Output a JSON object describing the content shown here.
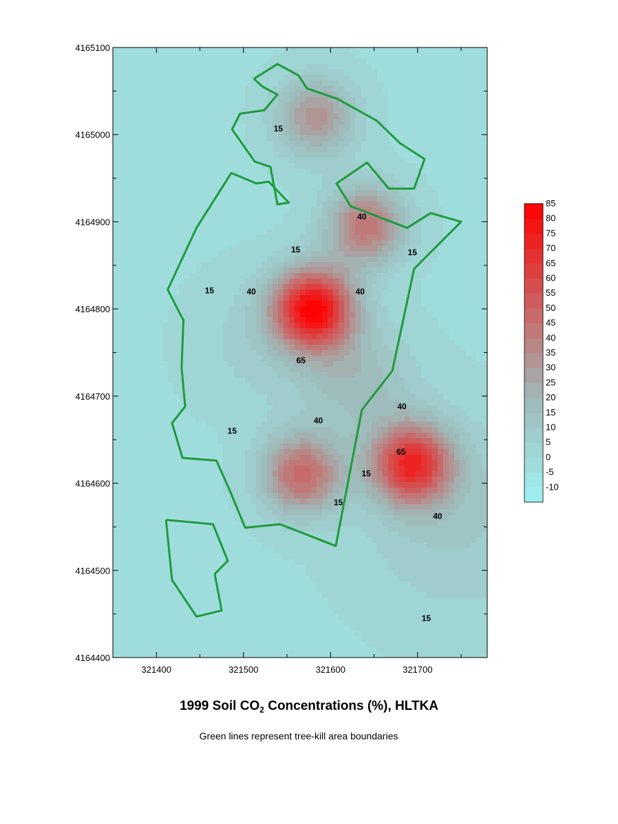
{
  "chart_data": {
    "type": "contour",
    "title_parts": {
      "before": "1999 Soil CO",
      "sub": "2",
      "after": " Concentrations (%), HLTKA"
    },
    "subtitle": "Green lines represent tree-kill area boundaries",
    "xlim": [
      321350,
      321780
    ],
    "ylim": [
      4164400,
      4165100
    ],
    "x_ticks": [
      {
        "value": 321400,
        "label": "321400"
      },
      {
        "value": 321500,
        "label": "321500"
      },
      {
        "value": 321600,
        "label": "321600"
      },
      {
        "value": 321700,
        "label": "321700"
      }
    ],
    "y_ticks": [
      {
        "value": 4164400,
        "label": "4164400"
      },
      {
        "value": 4164500,
        "label": "4164500"
      },
      {
        "value": 4164600,
        "label": "4164600"
      },
      {
        "value": 4164700,
        "label": "4164700"
      },
      {
        "value": 4164800,
        "label": "4164800"
      },
      {
        "value": 4164900,
        "label": "4164900"
      },
      {
        "value": 4165000,
        "label": "4165000"
      },
      {
        "value": 4165100,
        "label": "4165100"
      }
    ],
    "colorbar": {
      "levels": [
        -10,
        -5,
        0,
        5,
        10,
        15,
        20,
        25,
        30,
        35,
        40,
        45,
        50,
        55,
        60,
        65,
        70,
        75,
        80,
        85
      ],
      "labels": [
        "-10",
        "-5",
        "0",
        "5",
        "10",
        "15",
        "20",
        "25",
        "30",
        "35",
        "40",
        "45",
        "50",
        "55",
        "60",
        "65",
        "70",
        "75",
        "80",
        "85"
      ],
      "low_color": "#9ff2f2",
      "mid_color": "#9fb8b8",
      "high_color": "#ff0000"
    },
    "peaks": [
      {
        "x": 321580,
        "y": 4164800,
        "value": 87
      },
      {
        "x": 321693,
        "y": 4164622,
        "value": 72
      },
      {
        "x": 321567,
        "y": 4164610,
        "value": 52
      },
      {
        "x": 321583,
        "y": 4165020,
        "value": 38
      },
      {
        "x": 321641,
        "y": 4164895,
        "value": 48
      }
    ],
    "contour_labels": [
      {
        "x": 321540,
        "y": 4165007,
        "text": "15"
      },
      {
        "x": 321636,
        "y": 4164906,
        "text": "40"
      },
      {
        "x": 321560,
        "y": 4164868,
        "text": "15"
      },
      {
        "x": 321694,
        "y": 4164865,
        "text": "15"
      },
      {
        "x": 321461,
        "y": 4164821,
        "text": "15"
      },
      {
        "x": 321509,
        "y": 4164820,
        "text": "40"
      },
      {
        "x": 321634,
        "y": 4164820,
        "text": "40"
      },
      {
        "x": 321566,
        "y": 4164741,
        "text": "65"
      },
      {
        "x": 321682,
        "y": 4164688,
        "text": "40"
      },
      {
        "x": 321586,
        "y": 4164672,
        "text": "40"
      },
      {
        "x": 321487,
        "y": 4164660,
        "text": "15"
      },
      {
        "x": 321681,
        "y": 4164636,
        "text": "65"
      },
      {
        "x": 321641,
        "y": 4164611,
        "text": "15"
      },
      {
        "x": 321609,
        "y": 4164578,
        "text": "15"
      },
      {
        "x": 321723,
        "y": 4164562,
        "text": "40"
      },
      {
        "x": 321710,
        "y": 4164445,
        "text": "15"
      }
    ],
    "boundaries": [
      {
        "name": "north",
        "points": [
          [
            321512,
            4165064
          ],
          [
            321539,
            4165081
          ],
          [
            321563,
            4165068
          ],
          [
            321573,
            4165053
          ],
          [
            321608,
            4165041
          ],
          [
            321653,
            4165016
          ],
          [
            321680,
            4164990
          ],
          [
            321708,
            4164972
          ],
          [
            321696,
            4164938
          ],
          [
            321667,
            4164938
          ],
          [
            321642,
            4164968
          ],
          [
            321607,
            4164944
          ],
          [
            321623,
            4164918
          ],
          [
            321688,
            4164893
          ],
          [
            321715,
            4164910
          ],
          [
            321750,
            4164900
          ],
          [
            321696,
            4164846
          ],
          [
            321671,
            4164729
          ],
          [
            321636,
            4164684
          ],
          [
            321606,
            4164528
          ],
          [
            321542,
            4164553
          ],
          [
            321502,
            4164549
          ],
          [
            321485,
            4164590
          ],
          [
            321469,
            4164626
          ],
          [
            321430,
            4164629
          ],
          [
            321418,
            4164669
          ],
          [
            321433,
            4164688
          ],
          [
            321429,
            4164732
          ],
          [
            321431,
            4164787
          ],
          [
            321413,
            4164822
          ],
          [
            321446,
            4164893
          ],
          [
            321486,
            4164956
          ],
          [
            321515,
            4164944
          ],
          [
            321529,
            4164946
          ],
          [
            321552,
            4164922
          ],
          [
            321539,
            4164920
          ],
          [
            321531,
            4164963
          ],
          [
            321513,
            4164969
          ],
          [
            321487,
            4165006
          ],
          [
            321496,
            4165024
          ],
          [
            321524,
            4165028
          ],
          [
            321539,
            4165046
          ],
          [
            321522,
            4165055
          ],
          [
            321512,
            4165064
          ]
        ]
      },
      {
        "name": "southwest",
        "points": [
          [
            321411,
            4164558
          ],
          [
            321465,
            4164553
          ],
          [
            321482,
            4164511
          ],
          [
            321467,
            4164496
          ],
          [
            321475,
            4164454
          ],
          [
            321446,
            4164447
          ],
          [
            321418,
            4164489
          ],
          [
            321411,
            4164558
          ]
        ]
      }
    ]
  }
}
